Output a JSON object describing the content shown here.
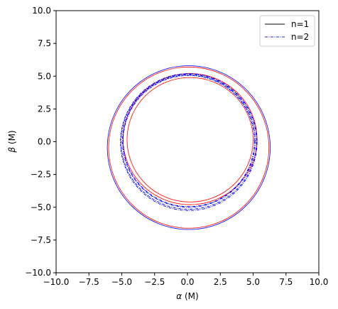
{
  "chart_data": {
    "type": "line",
    "xlabel_symbol": "α",
    "xlabel_unit": " (M)",
    "ylabel_symbol": "β",
    "ylabel_unit": " (M)",
    "xlim": [
      -10,
      10
    ],
    "ylim": [
      -10,
      10
    ],
    "xticks": [
      -10,
      -7.5,
      -5,
      -2.5,
      0,
      2.5,
      5,
      7.5,
      10
    ],
    "yticks": [
      -10,
      -7.5,
      -5,
      -2.5,
      0,
      2.5,
      5,
      7.5,
      10
    ],
    "xtick_labels": [
      "−10.0",
      "−7.5",
      "−5.0",
      "−2.5",
      "0.0",
      "2.5",
      "5.0",
      "7.5",
      "10.0"
    ],
    "ytick_labels": [
      "−10.0",
      "−7.5",
      "−5.0",
      "−2.5",
      "0.0",
      "2.5",
      "5.0",
      "7.5",
      "10.0"
    ],
    "grid": false,
    "legend_position": "top-right",
    "legend": [
      {
        "label": "n=1",
        "style": "solid",
        "color": "#000000"
      },
      {
        "label": "n=2",
        "style": "dashdot",
        "color": "#1f1fb4"
      }
    ],
    "series": [
      {
        "color": "#0000ff",
        "style": "solid",
        "cx": 0.2,
        "top": 5.8,
        "bottom": -6.7,
        "left": -6.1,
        "right": 6.3
      },
      {
        "color": "#ff0000",
        "style": "solid",
        "cx": 0.2,
        "top": 5.7,
        "bottom": -6.6,
        "left": -6.0,
        "right": 6.2
      },
      {
        "color": "#ff0000",
        "style": "solid",
        "cx": 0.1,
        "top": 5.2,
        "bottom": -4.8,
        "left": -4.9,
        "right": 5.3
      },
      {
        "color": "#ff0000",
        "style": "solid",
        "cx": 0.1,
        "top": 4.9,
        "bottom": -4.6,
        "left": -4.6,
        "right": 5.0
      },
      {
        "color": "#0000ff",
        "style": "dashdot",
        "cx": 0.1,
        "top": 5.15,
        "bottom": -5.15,
        "left": -5.05,
        "right": 5.25
      },
      {
        "color": "#0000ff",
        "style": "dashdot",
        "cx": 0.1,
        "top": 5.1,
        "bottom": -5.0,
        "left": -4.95,
        "right": 5.15
      },
      {
        "color": "#0000ff",
        "style": "dashdot",
        "cx": 0.1,
        "top": 5.05,
        "bottom": -4.95,
        "left": -4.9,
        "right": 5.1
      },
      {
        "color": "#0000ff",
        "style": "dashdot",
        "cx": 0.1,
        "top": 5.2,
        "bottom": -5.25,
        "left": -5.1,
        "right": 5.3
      }
    ]
  }
}
